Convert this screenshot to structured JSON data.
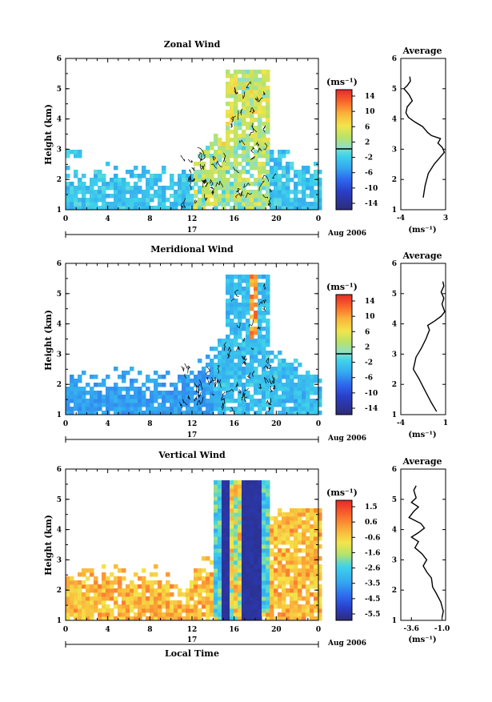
{
  "common": {
    "ylabel": "Height (km)",
    "xticks": [
      "0",
      "4",
      "8",
      "12",
      "16",
      "20",
      "0"
    ],
    "yticks": [
      "1",
      "2",
      "3",
      "4",
      "5",
      "6"
    ],
    "day_label": "17",
    "month_label": "Aug 2006",
    "xlabel": "Local Time",
    "unit_label": "(ms⁻¹)",
    "avg_title": "Average",
    "avg_unit": "(ms⁻¹)"
  },
  "chart_data": [
    {
      "type": "heatmap",
      "title": "Zonal Wind",
      "ylabel": "Height (km)",
      "xlim": [
        0,
        24
      ],
      "ylim": [
        1,
        6
      ],
      "colorbar": {
        "ticks": [
          "14",
          "10",
          "6",
          "2",
          "-2",
          "-6",
          "-10",
          "-14"
        ],
        "min": -16,
        "max": 16
      },
      "profile": {
        "title": "Average",
        "xticks": [
          "-4",
          "3"
        ],
        "xlim": [
          -4,
          3
        ],
        "points": [
          [
            -0.5,
            1.4
          ],
          [
            -0.2,
            1.8
          ],
          [
            0.3,
            2.2
          ],
          [
            1.2,
            2.5
          ],
          [
            2.2,
            2.75
          ],
          [
            2.8,
            2.9
          ],
          [
            2.5,
            3.05
          ],
          [
            1.8,
            3.2
          ],
          [
            2.2,
            3.35
          ],
          [
            0.8,
            3.45
          ],
          [
            0.2,
            3.55
          ],
          [
            -0.6,
            3.75
          ],
          [
            -1.8,
            3.9
          ],
          [
            -2.8,
            4.05
          ],
          [
            -3.2,
            4.2
          ],
          [
            -3.0,
            4.4
          ],
          [
            -2.2,
            4.6
          ],
          [
            -2.7,
            4.8
          ],
          [
            -3.5,
            5.0
          ],
          [
            -3.0,
            5.1
          ],
          [
            -2.5,
            5.25
          ],
          [
            -2.6,
            5.4
          ]
        ]
      }
    },
    {
      "type": "heatmap",
      "title": "Meridional Wind",
      "ylabel": "Height (km)",
      "xlim": [
        0,
        24
      ],
      "ylim": [
        1,
        6
      ],
      "colorbar": {
        "ticks": [
          "14",
          "10",
          "6",
          "2",
          "-2",
          "-6",
          "-10",
          "-14"
        ],
        "min": -16,
        "max": 16
      },
      "profile": {
        "title": "Average",
        "xticks": [
          "-4",
          "1"
        ],
        "xlim": [
          -4,
          1
        ],
        "points": [
          [
            0.0,
            1.1
          ],
          [
            -0.6,
            1.4
          ],
          [
            -1.3,
            1.8
          ],
          [
            -2.0,
            2.2
          ],
          [
            -2.6,
            2.5
          ],
          [
            -2.3,
            2.9
          ],
          [
            -1.7,
            3.2
          ],
          [
            -1.2,
            3.5
          ],
          [
            -0.8,
            3.8
          ],
          [
            -1.0,
            3.95
          ],
          [
            -0.2,
            4.1
          ],
          [
            0.5,
            4.25
          ],
          [
            0.9,
            4.4
          ],
          [
            0.6,
            4.65
          ],
          [
            0.8,
            4.85
          ],
          [
            0.5,
            5.05
          ],
          [
            0.8,
            5.25
          ],
          [
            0.7,
            5.4
          ]
        ]
      }
    },
    {
      "type": "heatmap",
      "title": "Vertical Wind",
      "ylabel": "Height (km)",
      "xlabel": "Local Time",
      "xlim": [
        0,
        24
      ],
      "ylim": [
        1,
        6
      ],
      "colorbar": {
        "ticks": [
          "1.5",
          "0.6",
          "-0.6",
          "-1.6",
          "-2.6",
          "-3.5",
          "-4.5",
          "-5.5"
        ],
        "min": -6.2,
        "max": 2.0
      },
      "profile": {
        "title": "Average",
        "xticks": [
          "-3.6",
          "-1.0"
        ],
        "xlim": [
          -4.5,
          -0.7
        ],
        "points": [
          [
            -1.0,
            1.1
          ],
          [
            -0.9,
            1.3
          ],
          [
            -1.1,
            1.6
          ],
          [
            -1.5,
            1.9
          ],
          [
            -1.8,
            2.1
          ],
          [
            -1.9,
            2.4
          ],
          [
            -2.3,
            2.6
          ],
          [
            -2.6,
            2.8
          ],
          [
            -2.3,
            3.0
          ],
          [
            -2.7,
            3.2
          ],
          [
            -3.3,
            3.4
          ],
          [
            -3.0,
            3.6
          ],
          [
            -3.6,
            3.75
          ],
          [
            -3.0,
            3.9
          ],
          [
            -2.5,
            4.05
          ],
          [
            -2.8,
            4.2
          ],
          [
            -3.8,
            4.4
          ],
          [
            -3.4,
            4.6
          ],
          [
            -3.0,
            4.75
          ],
          [
            -3.6,
            4.9
          ],
          [
            -3.2,
            5.05
          ],
          [
            -3.4,
            5.3
          ],
          [
            -3.2,
            5.45
          ]
        ]
      }
    }
  ]
}
